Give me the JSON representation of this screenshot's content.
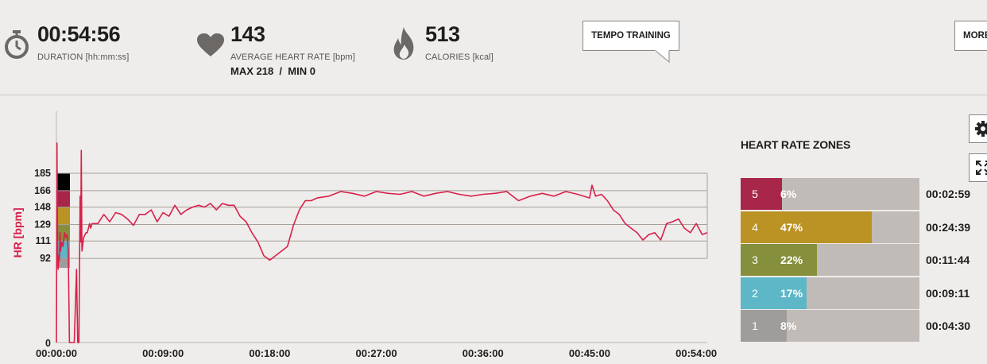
{
  "header": {
    "duration": {
      "value": "00:54:56",
      "label": "DURATION [hh:mm:ss]",
      "icon": "stopwatch-icon"
    },
    "heart_rate": {
      "value": "143",
      "label": "AVERAGE HEART RATE [bpm]",
      "sub": "MAX 218  /  MIN 0",
      "icon": "heart-icon"
    },
    "calories": {
      "value": "513",
      "label": "CALORIES [kcal]",
      "icon": "flame-icon"
    },
    "training_type_label": "TEMPO TRAINING",
    "more_label": "MORE"
  },
  "zones": {
    "title": "HEART RATE ZONES",
    "items": [
      {
        "zone": "5",
        "percent": "6%",
        "time": "00:02:59",
        "color": "#a8264a",
        "frac": 0.06
      },
      {
        "zone": "4",
        "percent": "47%",
        "time": "00:24:39",
        "color": "#bb9224",
        "frac": 0.47
      },
      {
        "zone": "3",
        "percent": "22%",
        "time": "00:11:44",
        "color": "#868f3c",
        "frac": 0.22
      },
      {
        "zone": "2",
        "percent": "17%",
        "time": "00:09:11",
        "color": "#5db7c6",
        "frac": 0.17
      },
      {
        "zone": "1",
        "percent": "8%",
        "time": "00:04:30",
        "color": "#9f9d9b",
        "frac": 0.08
      }
    ]
  },
  "chart_data": {
    "type": "line",
    "ylabel": "HR [bpm]",
    "xlabel": "",
    "title": "",
    "x_unit": "minutes",
    "ylim": [
      0,
      185
    ],
    "xlim": [
      0,
      54.93
    ],
    "y_ticks": [
      "0",
      "92",
      "111",
      "129",
      "148",
      "166",
      "185"
    ],
    "x_ticks": [
      "00:00:00",
      "00:09:00",
      "00:18:00",
      "00:27:00",
      "00:36:00",
      "00:45:00",
      "00:54:00"
    ],
    "zone_band_colors": [
      "#9f9d9b",
      "#5db7c6",
      "#868f3c",
      "#bb9224",
      "#a8264a"
    ],
    "line_color": "#d8204a",
    "series": [
      {
        "x": [
          0,
          0.05,
          0.1,
          0.15,
          0.2,
          0.25,
          0.3,
          0.35,
          0.45,
          0.55,
          0.7,
          0.8,
          0.9,
          1.0,
          1.1,
          1.5,
          1.7,
          1.8,
          1.9,
          2.0,
          2.05,
          2.1,
          2.15,
          2.3,
          2.5,
          2.6,
          2.7,
          2.8,
          2.9,
          3.0,
          3.5,
          4.0,
          4.5,
          5.0,
          5.5,
          6.0,
          6.5,
          7.0,
          7.5,
          8.0,
          8.5,
          9.0,
          9.5,
          10.0,
          10.5,
          11.0,
          11.5,
          12.0,
          12.5,
          13.0,
          13.5,
          14.0,
          14.5,
          15.0,
          15.5,
          16.0,
          16.5,
          17.0,
          17.5,
          18.0,
          18.5,
          19.0,
          19.5,
          20.0,
          20.5,
          21.0,
          21.5,
          22.0,
          23.0,
          24.0,
          25.0,
          26.0,
          27.0,
          28.0,
          29.0,
          30.0,
          31.0,
          32.0,
          33.0,
          34.0,
          35.0,
          36.0,
          37.0,
          38.0,
          39.0,
          40.0,
          41.0,
          42.0,
          43.0,
          44.0,
          45.0,
          45.2,
          45.5,
          46.0,
          46.5,
          47.0,
          47.5,
          48.0,
          48.5,
          49.0,
          49.5,
          50.0,
          50.5,
          51.0,
          51.5,
          52.0,
          52.5,
          53.0,
          53.5,
          54.0,
          54.5,
          54.93
        ],
        "y": [
          0,
          218,
          100,
          80,
          95,
          90,
          120,
          100,
          110,
          105,
          120,
          115,
          118,
          100,
          0,
          0,
          80,
          0,
          0,
          160,
          110,
          210,
          100,
          115,
          120,
          120,
          125,
          130,
          125,
          130,
          130,
          140,
          132,
          142,
          140,
          135,
          128,
          140,
          140,
          145,
          132,
          142,
          138,
          150,
          140,
          145,
          148,
          150,
          148,
          152,
          145,
          152,
          150,
          150,
          138,
          132,
          120,
          110,
          95,
          90,
          95,
          100,
          105,
          128,
          145,
          155,
          155,
          158,
          160,
          165,
          163,
          160,
          165,
          163,
          162,
          165,
          160,
          163,
          165,
          162,
          160,
          162,
          163,
          165,
          155,
          160,
          163,
          160,
          165,
          162,
          158,
          172,
          160,
          162,
          155,
          145,
          140,
          130,
          125,
          120,
          112,
          118,
          120,
          112,
          130,
          132,
          135,
          125,
          120,
          130,
          118,
          120
        ]
      }
    ]
  }
}
